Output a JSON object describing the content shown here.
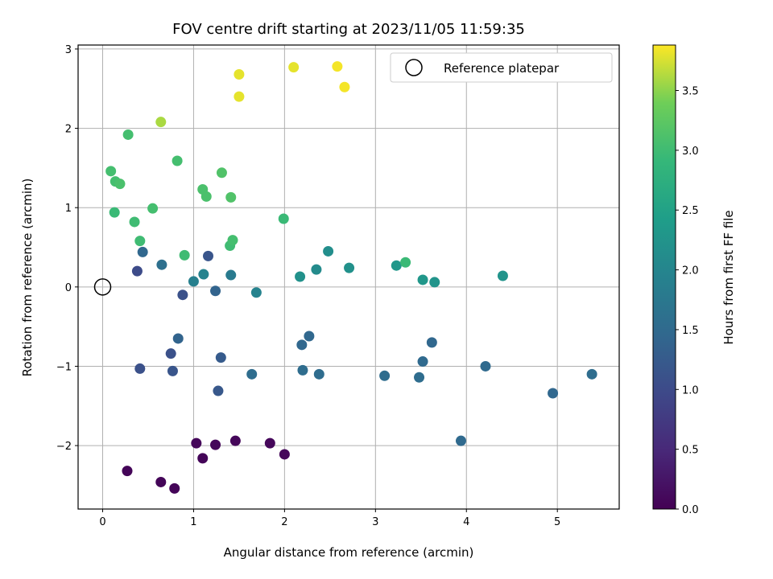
{
  "chart_data": {
    "type": "scatter",
    "title": "FOV centre drift starting at 2023/11/05 11:59:35",
    "xlabel": "Angular distance from reference (arcmin)",
    "ylabel": "Rotation from reference (arcmin)",
    "xlim": [
      -0.27,
      5.68
    ],
    "ylim": [
      -2.8,
      3.05
    ],
    "xticks": [
      0,
      1,
      2,
      3,
      4,
      5
    ],
    "yticks": [
      -2,
      -1,
      0,
      1,
      2,
      3
    ],
    "grid": true,
    "legend": {
      "placement": "top-right",
      "entries": [
        "Reference platepar"
      ]
    },
    "reference_point": {
      "x": 0,
      "y": 0,
      "label": "Reference platepar"
    },
    "colorbar": {
      "label": "Hours from first FF file",
      "colormap": "viridis",
      "range": [
        0,
        3.88
      ],
      "ticks": [
        "0.0",
        "0.5",
        "1.0",
        "1.5",
        "2.0",
        "2.5",
        "3.0",
        "3.5"
      ],
      "tick_values": [
        0,
        0.5,
        1.0,
        1.5,
        2.0,
        2.5,
        3.0,
        3.5
      ]
    },
    "points": [
      {
        "x": 0.27,
        "y": -2.32,
        "c": 0.05
      },
      {
        "x": 0.64,
        "y": -2.46,
        "c": 0.05
      },
      {
        "x": 0.79,
        "y": -2.54,
        "c": 0.05
      },
      {
        "x": 1.03,
        "y": -1.97,
        "c": 0.08
      },
      {
        "x": 1.1,
        "y": -2.16,
        "c": 0.05
      },
      {
        "x": 1.24,
        "y": -1.99,
        "c": 0.08
      },
      {
        "x": 1.46,
        "y": -1.94,
        "c": 0.08
      },
      {
        "x": 1.84,
        "y": -1.97,
        "c": 0.08
      },
      {
        "x": 2.0,
        "y": -2.11,
        "c": 0.08
      },
      {
        "x": 0.41,
        "y": -1.03,
        "c": 1.1
      },
      {
        "x": 0.75,
        "y": -0.84,
        "c": 1.1
      },
      {
        "x": 0.77,
        "y": -1.06,
        "c": 1.15
      },
      {
        "x": 0.83,
        "y": -0.65,
        "c": 1.4
      },
      {
        "x": 1.3,
        "y": -0.89,
        "c": 1.25
      },
      {
        "x": 1.27,
        "y": -1.31,
        "c": 1.2
      },
      {
        "x": 1.64,
        "y": -1.1,
        "c": 1.55
      },
      {
        "x": 2.19,
        "y": -0.73,
        "c": 1.45
      },
      {
        "x": 2.27,
        "y": -0.62,
        "c": 1.45
      },
      {
        "x": 2.2,
        "y": -1.05,
        "c": 1.55
      },
      {
        "x": 2.38,
        "y": -1.1,
        "c": 1.55
      },
      {
        "x": 3.1,
        "y": -1.12,
        "c": 1.55
      },
      {
        "x": 3.48,
        "y": -1.14,
        "c": 1.55
      },
      {
        "x": 3.52,
        "y": -0.94,
        "c": 1.5
      },
      {
        "x": 3.62,
        "y": -0.7,
        "c": 1.45
      },
      {
        "x": 4.21,
        "y": -1.0,
        "c": 1.5
      },
      {
        "x": 3.94,
        "y": -1.94,
        "c": 1.5
      },
      {
        "x": 4.95,
        "y": -1.34,
        "c": 1.45
      },
      {
        "x": 5.38,
        "y": -1.1,
        "c": 1.55
      },
      {
        "x": 0.38,
        "y": 0.2,
        "c": 1.0
      },
      {
        "x": 0.44,
        "y": 0.44,
        "c": 1.45
      },
      {
        "x": 0.65,
        "y": 0.28,
        "c": 1.6
      },
      {
        "x": 0.88,
        "y": -0.1,
        "c": 1.1
      },
      {
        "x": 1.16,
        "y": 0.39,
        "c": 1.15
      },
      {
        "x": 1.24,
        "y": -0.05,
        "c": 1.4
      },
      {
        "x": 1.0,
        "y": 0.07,
        "c": 1.9
      },
      {
        "x": 1.11,
        "y": 0.16,
        "c": 1.95
      },
      {
        "x": 1.41,
        "y": 0.15,
        "c": 1.8
      },
      {
        "x": 1.69,
        "y": -0.07,
        "c": 1.95
      },
      {
        "x": 2.17,
        "y": 0.13,
        "c": 2.2
      },
      {
        "x": 2.35,
        "y": 0.22,
        "c": 2.1
      },
      {
        "x": 2.48,
        "y": 0.45,
        "c": 2.15
      },
      {
        "x": 2.71,
        "y": 0.24,
        "c": 2.2
      },
      {
        "x": 3.23,
        "y": 0.27,
        "c": 2.3
      },
      {
        "x": 3.52,
        "y": 0.09,
        "c": 2.3
      },
      {
        "x": 3.65,
        "y": 0.06,
        "c": 2.25
      },
      {
        "x": 4.4,
        "y": 0.14,
        "c": 2.25
      },
      {
        "x": 3.33,
        "y": 0.31,
        "c": 2.95
      },
      {
        "x": 0.41,
        "y": 0.58,
        "c": 3.0
      },
      {
        "x": 0.9,
        "y": 0.4,
        "c": 3.0
      },
      {
        "x": 1.4,
        "y": 0.52,
        "c": 3.0
      },
      {
        "x": 1.43,
        "y": 0.59,
        "c": 3.05
      },
      {
        "x": 1.99,
        "y": 0.86,
        "c": 2.95
      },
      {
        "x": 0.13,
        "y": 0.94,
        "c": 2.95
      },
      {
        "x": 0.35,
        "y": 0.82,
        "c": 3.0
      },
      {
        "x": 0.55,
        "y": 0.99,
        "c": 3.05
      },
      {
        "x": 0.09,
        "y": 1.46,
        "c": 3.05
      },
      {
        "x": 0.14,
        "y": 1.33,
        "c": 3.05
      },
      {
        "x": 0.19,
        "y": 1.3,
        "c": 3.1
      },
      {
        "x": 0.82,
        "y": 1.59,
        "c": 3.05
      },
      {
        "x": 1.1,
        "y": 1.23,
        "c": 3.1
      },
      {
        "x": 1.14,
        "y": 1.14,
        "c": 3.1
      },
      {
        "x": 1.31,
        "y": 1.44,
        "c": 3.15
      },
      {
        "x": 1.41,
        "y": 1.13,
        "c": 3.15
      },
      {
        "x": 0.28,
        "y": 1.92,
        "c": 3.05
      },
      {
        "x": 0.64,
        "y": 2.08,
        "c": 3.6
      },
      {
        "x": 1.5,
        "y": 2.68,
        "c": 3.8
      },
      {
        "x": 1.5,
        "y": 2.4,
        "c": 3.8
      },
      {
        "x": 2.1,
        "y": 2.77,
        "c": 3.8
      },
      {
        "x": 2.58,
        "y": 2.78,
        "c": 3.85
      },
      {
        "x": 2.66,
        "y": 2.52,
        "c": 3.85
      }
    ]
  }
}
